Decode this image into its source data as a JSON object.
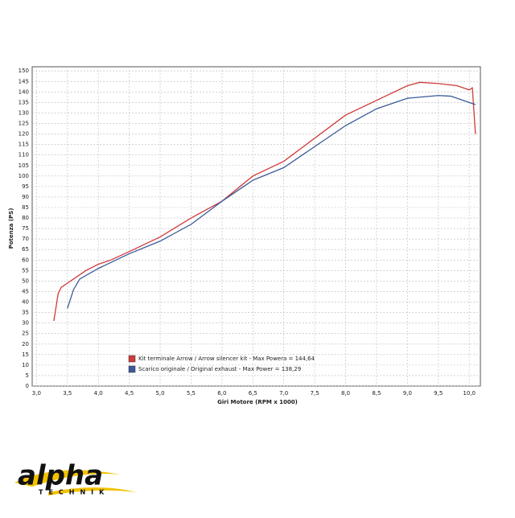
{
  "chart_data": {
    "type": "line",
    "x_label": "Giri Motore (RPM x 1000)",
    "y_label": "Potenza (PS)",
    "xlim": [
      2.93,
      10.18
    ],
    "ylim": [
      0,
      152
    ],
    "xticks": [
      {
        "value": 3,
        "label": "3,0"
      },
      {
        "value": 3.5,
        "label": "3,5"
      },
      {
        "value": 4,
        "label": "4,0"
      },
      {
        "value": 4.5,
        "label": "4,5"
      },
      {
        "value": 5,
        "label": "5,0"
      },
      {
        "value": 5.5,
        "label": "5,5"
      },
      {
        "value": 6,
        "label": "6,0"
      },
      {
        "value": 6.5,
        "label": "6,5"
      },
      {
        "value": 7,
        "label": "7,0"
      },
      {
        "value": 7.5,
        "label": "7,5"
      },
      {
        "value": 8,
        "label": "8,0"
      },
      {
        "value": 8.5,
        "label": "8,5"
      },
      {
        "value": 9,
        "label": "9,0"
      },
      {
        "value": 9.5,
        "label": "9,5"
      },
      {
        "value": 10,
        "label": "10,0"
      }
    ],
    "yticks": [
      0,
      5,
      10,
      15,
      20,
      25,
      30,
      35,
      40,
      45,
      50,
      55,
      60,
      65,
      70,
      75,
      80,
      85,
      90,
      95,
      100,
      105,
      110,
      115,
      120,
      125,
      130,
      135,
      140,
      145,
      150
    ],
    "grid": true,
    "series": [
      {
        "name": "Kit terminale Arrow / Arrow silencer kit - Max Powera = 144,64",
        "color": "#d03a3a",
        "x": [
          3.28,
          3.35,
          3.4,
          3.5,
          3.6,
          3.8,
          4.0,
          4.2,
          4.5,
          5.0,
          5.5,
          6.0,
          6.5,
          7.0,
          7.5,
          8.0,
          8.5,
          9.0,
          9.2,
          9.5,
          9.8,
          10.0,
          10.05,
          10.1
        ],
        "values": [
          31,
          44,
          47,
          49,
          51,
          55,
          58,
          60,
          64,
          71,
          80,
          88,
          100,
          107,
          118,
          129,
          136,
          143,
          144.6,
          144,
          143,
          141,
          142,
          120
        ]
      },
      {
        "name": "Scarico originale / Original exhaust - Max Power = 138,29",
        "color": "#3a5a9a",
        "x": [
          3.5,
          3.6,
          3.7,
          4.0,
          4.5,
          5.0,
          5.5,
          6.0,
          6.5,
          7.0,
          7.5,
          8.0,
          8.5,
          9.0,
          9.5,
          9.7,
          9.9,
          10.1
        ],
        "values": [
          37,
          46,
          51,
          56,
          63,
          69,
          77,
          88,
          98,
          104,
          114,
          124,
          132,
          137,
          138.3,
          138,
          136,
          134
        ]
      }
    ]
  },
  "logo": {
    "name": "alpha",
    "sub": "TECHNIK"
  }
}
